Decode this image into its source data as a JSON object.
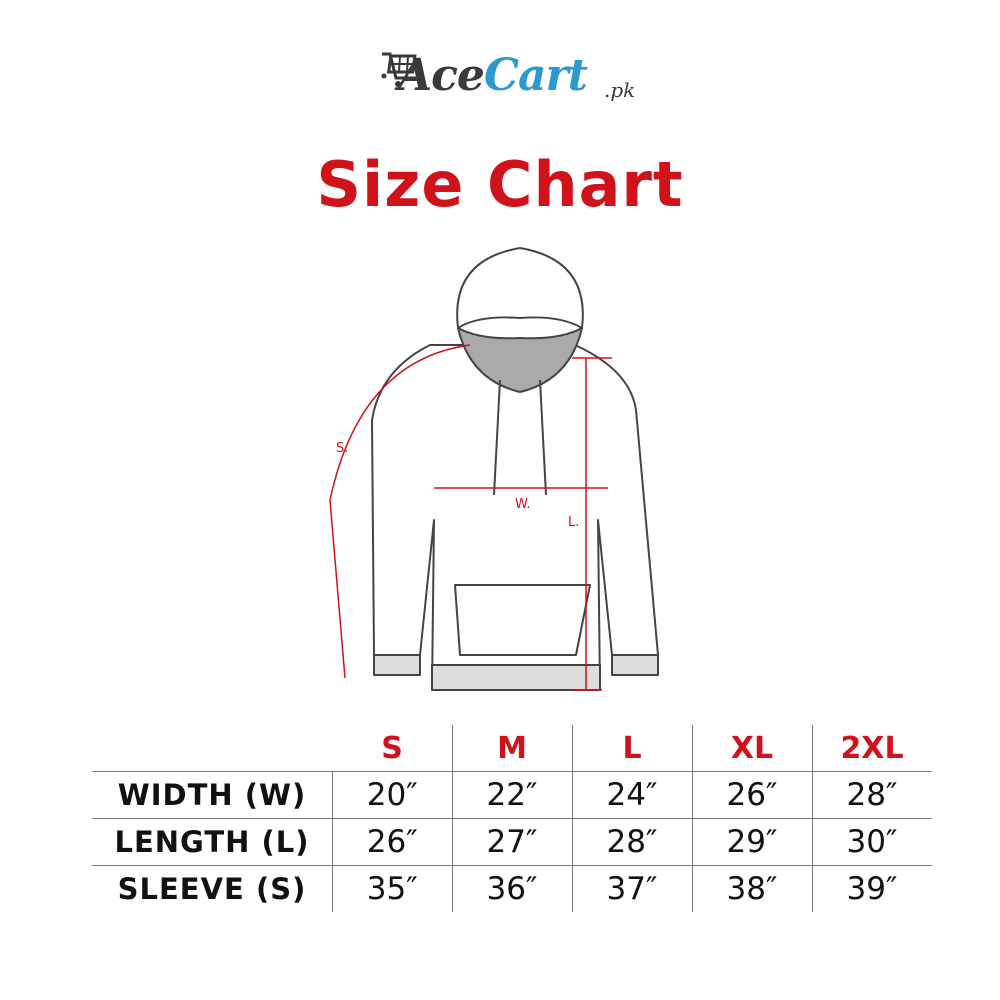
{
  "logo": {
    "part1": "Ace",
    "part2": "Cart",
    "suffix": ".pk",
    "icon": "shopping-cart-icon",
    "colors": {
      "dark": "#3a3a3a",
      "blue": "#2b9ad0"
    }
  },
  "title": "Size Chart",
  "accent_color": "#d0121b",
  "diagram": {
    "labels": {
      "sleeve": "S.",
      "width": "W.",
      "length": "L."
    }
  },
  "table": {
    "sizes": [
      "S",
      "M",
      "L",
      "XL",
      "2XL"
    ],
    "rows": [
      {
        "label": "WIDTH (W)",
        "values": [
          "20″",
          "22″",
          "24″",
          "26″",
          "28″"
        ]
      },
      {
        "label": "LENGTH (L)",
        "values": [
          "26″",
          "27″",
          "28″",
          "29″",
          "30″"
        ]
      },
      {
        "label": "SLEEVE (S)",
        "values": [
          "35″",
          "36″",
          "37″",
          "38″",
          "39″"
        ]
      }
    ]
  }
}
